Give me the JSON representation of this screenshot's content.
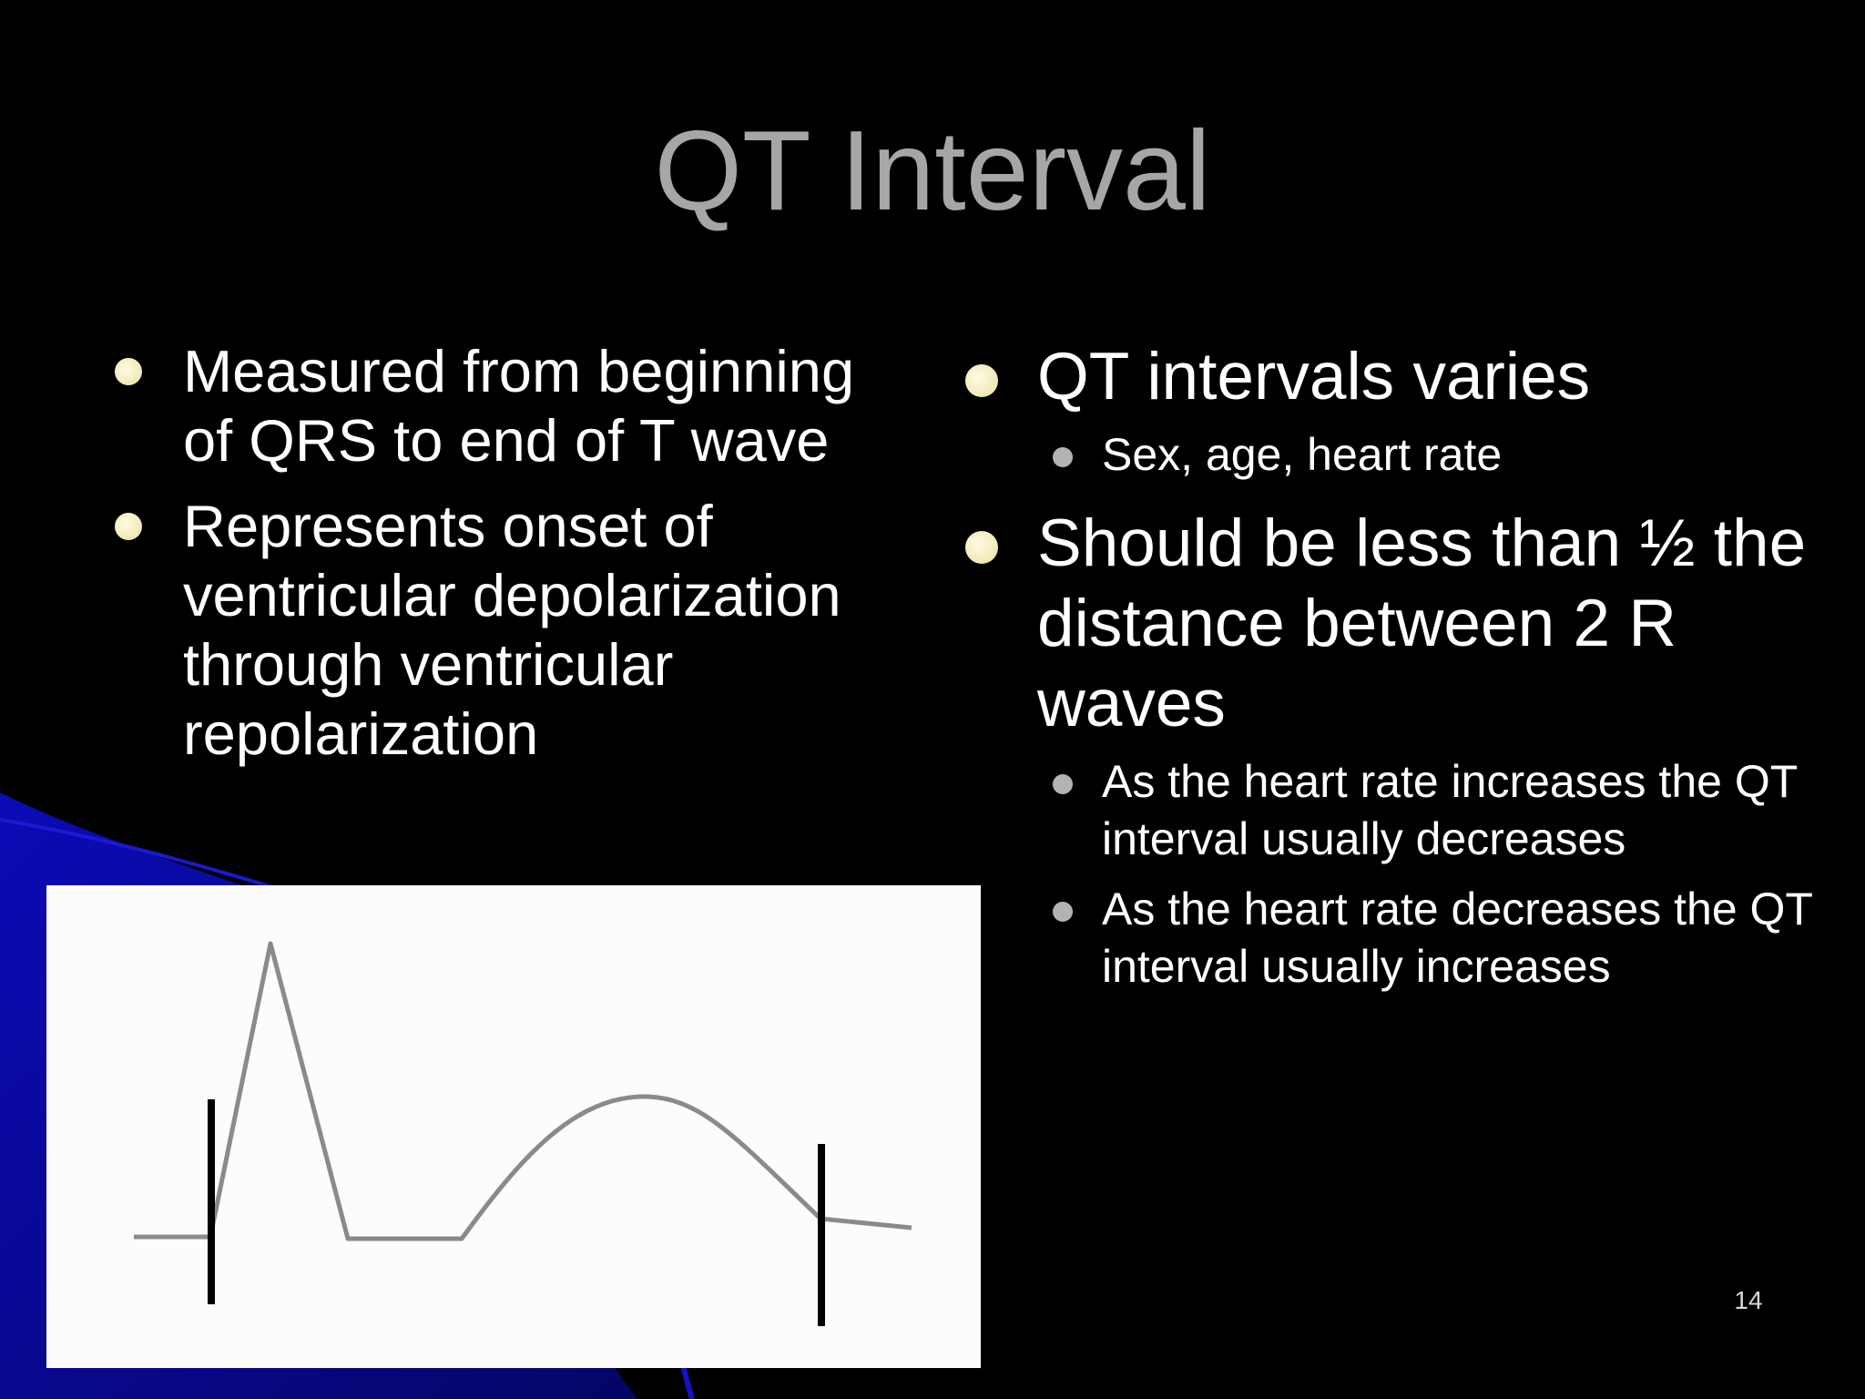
{
  "slide": {
    "title": "QT Interval",
    "page_number": "14",
    "left_bullets": [
      "Measured from beginning of QRS to end of T wave",
      "Represents onset of ventricular depolarization through ventricular repolarization"
    ],
    "right_bullets": [
      {
        "text": "QT intervals varies",
        "sub": [
          "Sex, age, heart rate"
        ]
      },
      {
        "text": "Should be less than ½ the distance between 2 R waves",
        "sub": [
          "As the heart rate increases the QT interval  usually decreases",
          "As the heart rate decreases the QT interval usually increases"
        ]
      }
    ]
  },
  "colors": {
    "background": "#000000",
    "title": "#a6a6a6",
    "text": "#ffffff",
    "bullet": "#f0e9b4",
    "accent": "#0a0ab0"
  },
  "figure": {
    "type": "ecg-waveform",
    "markers": [
      "qrs-start-marker",
      "t-wave-end-marker"
    ]
  }
}
